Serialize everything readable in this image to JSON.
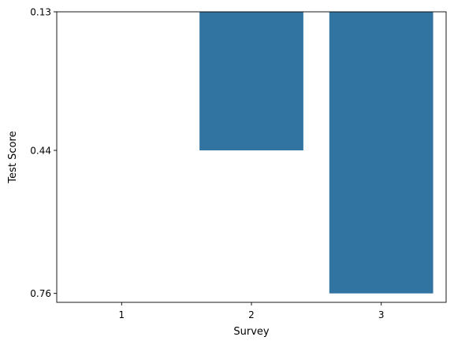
{
  "chart_data": {
    "type": "bar",
    "orientation": "vertical",
    "inverted_y_axis": true,
    "categories": [
      "1",
      "2",
      "3"
    ],
    "values": [
      0.13,
      0.44,
      0.76
    ],
    "baseline": 0.13,
    "xlabel": "Survey",
    "ylabel": "Test Score",
    "yticks": [
      0.13,
      0.44,
      0.76
    ],
    "ytick_labels": [
      "0.13",
      "0.44",
      "0.76"
    ],
    "ylim": [
      0.13,
      0.78
    ],
    "grid": false,
    "legend": "none",
    "bar_color": "#3274a1"
  }
}
